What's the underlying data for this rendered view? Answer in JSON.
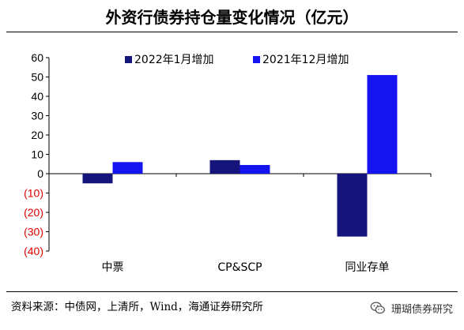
{
  "header": {
    "title": "外资行债券持仓量变化情况（亿元）"
  },
  "footer": {
    "source": "资料来源：中债网，上清所，Wind，海通证券研究所",
    "watermark": "珊瑚债券研究"
  },
  "colors": {
    "series_2022": "#14147a",
    "series_2021": "#1414f0",
    "negative_tick": "#e00000"
  },
  "icons": {
    "watermark": "wechat-icon"
  },
  "chart_data": {
    "type": "bar",
    "categories": [
      "中票",
      "CP&SCP",
      "同业存单"
    ],
    "series": [
      {
        "name": "2022年1月增加",
        "values": [
          -5,
          7,
          -32.5
        ]
      },
      {
        "name": "2021年12月增加",
        "values": [
          6,
          4.5,
          51
        ]
      }
    ],
    "ylim": [
      -40,
      60
    ],
    "yticks": [
      60,
      50,
      40,
      30,
      20,
      10,
      0,
      -10,
      -20,
      -30,
      -40
    ],
    "ytick_labels": [
      "60",
      "50",
      "40",
      "30",
      "20",
      "10",
      "0",
      "(10)",
      "(20)",
      "(30)",
      "(40)"
    ],
    "legend": "top",
    "grid": false
  }
}
